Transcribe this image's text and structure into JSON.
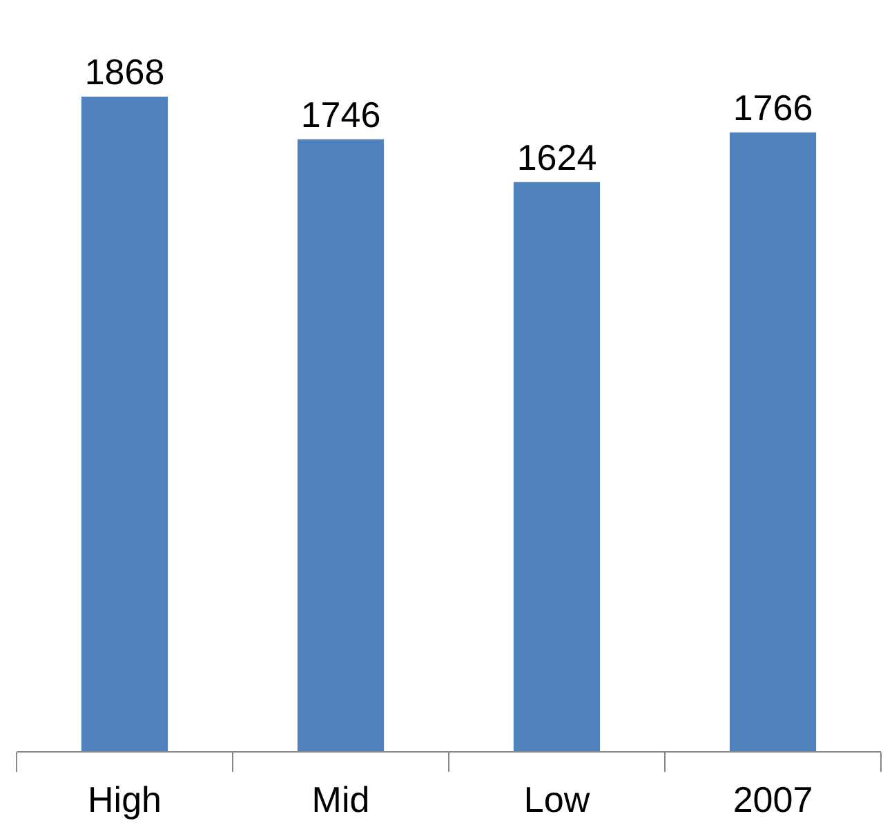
{
  "chart_data": {
    "type": "bar",
    "categories": [
      "High",
      "Mid",
      "Low",
      "2007"
    ],
    "values": [
      1868,
      1746,
      1624,
      1766
    ],
    "color": "#4f81bd",
    "data_labels": true,
    "tick_labels": "x"
  }
}
